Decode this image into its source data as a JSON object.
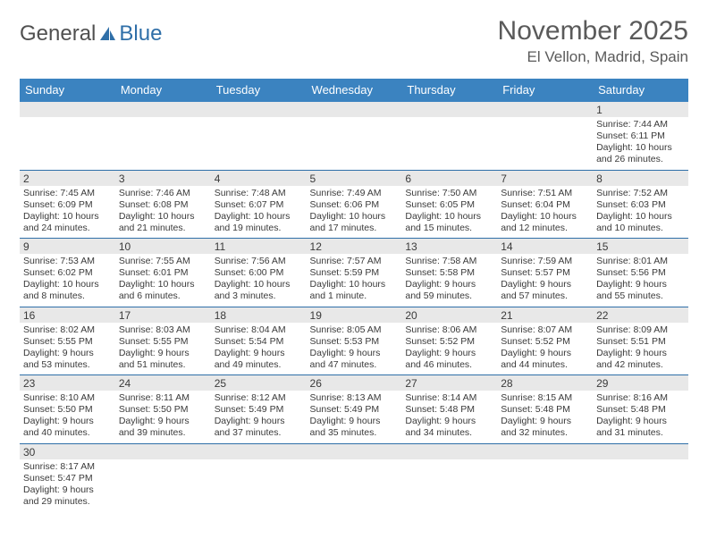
{
  "logo": {
    "text1": "General",
    "text2": "Blue"
  },
  "title": "November 2025",
  "location": "El Vellon, Madrid, Spain",
  "colors": {
    "header_bg": "#3b83c0",
    "header_text": "#ffffff",
    "daynum_bg": "#e8e8e8",
    "row_border": "#2f6fa8",
    "body_text": "#3a3a3a",
    "title_text": "#5a5a5a",
    "logo_blue": "#2f6fa8"
  },
  "weekdays": [
    "Sunday",
    "Monday",
    "Tuesday",
    "Wednesday",
    "Thursday",
    "Friday",
    "Saturday"
  ],
  "grid": [
    [
      {
        "n": "",
        "sr": "",
        "ss": "",
        "dl": ""
      },
      {
        "n": "",
        "sr": "",
        "ss": "",
        "dl": ""
      },
      {
        "n": "",
        "sr": "",
        "ss": "",
        "dl": ""
      },
      {
        "n": "",
        "sr": "",
        "ss": "",
        "dl": ""
      },
      {
        "n": "",
        "sr": "",
        "ss": "",
        "dl": ""
      },
      {
        "n": "",
        "sr": "",
        "ss": "",
        "dl": ""
      },
      {
        "n": "1",
        "sr": "Sunrise: 7:44 AM",
        "ss": "Sunset: 6:11 PM",
        "dl": "Daylight: 10 hours and 26 minutes."
      }
    ],
    [
      {
        "n": "2",
        "sr": "Sunrise: 7:45 AM",
        "ss": "Sunset: 6:09 PM",
        "dl": "Daylight: 10 hours and 24 minutes."
      },
      {
        "n": "3",
        "sr": "Sunrise: 7:46 AM",
        "ss": "Sunset: 6:08 PM",
        "dl": "Daylight: 10 hours and 21 minutes."
      },
      {
        "n": "4",
        "sr": "Sunrise: 7:48 AM",
        "ss": "Sunset: 6:07 PM",
        "dl": "Daylight: 10 hours and 19 minutes."
      },
      {
        "n": "5",
        "sr": "Sunrise: 7:49 AM",
        "ss": "Sunset: 6:06 PM",
        "dl": "Daylight: 10 hours and 17 minutes."
      },
      {
        "n": "6",
        "sr": "Sunrise: 7:50 AM",
        "ss": "Sunset: 6:05 PM",
        "dl": "Daylight: 10 hours and 15 minutes."
      },
      {
        "n": "7",
        "sr": "Sunrise: 7:51 AM",
        "ss": "Sunset: 6:04 PM",
        "dl": "Daylight: 10 hours and 12 minutes."
      },
      {
        "n": "8",
        "sr": "Sunrise: 7:52 AM",
        "ss": "Sunset: 6:03 PM",
        "dl": "Daylight: 10 hours and 10 minutes."
      }
    ],
    [
      {
        "n": "9",
        "sr": "Sunrise: 7:53 AM",
        "ss": "Sunset: 6:02 PM",
        "dl": "Daylight: 10 hours and 8 minutes."
      },
      {
        "n": "10",
        "sr": "Sunrise: 7:55 AM",
        "ss": "Sunset: 6:01 PM",
        "dl": "Daylight: 10 hours and 6 minutes."
      },
      {
        "n": "11",
        "sr": "Sunrise: 7:56 AM",
        "ss": "Sunset: 6:00 PM",
        "dl": "Daylight: 10 hours and 3 minutes."
      },
      {
        "n": "12",
        "sr": "Sunrise: 7:57 AM",
        "ss": "Sunset: 5:59 PM",
        "dl": "Daylight: 10 hours and 1 minute."
      },
      {
        "n": "13",
        "sr": "Sunrise: 7:58 AM",
        "ss": "Sunset: 5:58 PM",
        "dl": "Daylight: 9 hours and 59 minutes."
      },
      {
        "n": "14",
        "sr": "Sunrise: 7:59 AM",
        "ss": "Sunset: 5:57 PM",
        "dl": "Daylight: 9 hours and 57 minutes."
      },
      {
        "n": "15",
        "sr": "Sunrise: 8:01 AM",
        "ss": "Sunset: 5:56 PM",
        "dl": "Daylight: 9 hours and 55 minutes."
      }
    ],
    [
      {
        "n": "16",
        "sr": "Sunrise: 8:02 AM",
        "ss": "Sunset: 5:55 PM",
        "dl": "Daylight: 9 hours and 53 minutes."
      },
      {
        "n": "17",
        "sr": "Sunrise: 8:03 AM",
        "ss": "Sunset: 5:55 PM",
        "dl": "Daylight: 9 hours and 51 minutes."
      },
      {
        "n": "18",
        "sr": "Sunrise: 8:04 AM",
        "ss": "Sunset: 5:54 PM",
        "dl": "Daylight: 9 hours and 49 minutes."
      },
      {
        "n": "19",
        "sr": "Sunrise: 8:05 AM",
        "ss": "Sunset: 5:53 PM",
        "dl": "Daylight: 9 hours and 47 minutes."
      },
      {
        "n": "20",
        "sr": "Sunrise: 8:06 AM",
        "ss": "Sunset: 5:52 PM",
        "dl": "Daylight: 9 hours and 46 minutes."
      },
      {
        "n": "21",
        "sr": "Sunrise: 8:07 AM",
        "ss": "Sunset: 5:52 PM",
        "dl": "Daylight: 9 hours and 44 minutes."
      },
      {
        "n": "22",
        "sr": "Sunrise: 8:09 AM",
        "ss": "Sunset: 5:51 PM",
        "dl": "Daylight: 9 hours and 42 minutes."
      }
    ],
    [
      {
        "n": "23",
        "sr": "Sunrise: 8:10 AM",
        "ss": "Sunset: 5:50 PM",
        "dl": "Daylight: 9 hours and 40 minutes."
      },
      {
        "n": "24",
        "sr": "Sunrise: 8:11 AM",
        "ss": "Sunset: 5:50 PM",
        "dl": "Daylight: 9 hours and 39 minutes."
      },
      {
        "n": "25",
        "sr": "Sunrise: 8:12 AM",
        "ss": "Sunset: 5:49 PM",
        "dl": "Daylight: 9 hours and 37 minutes."
      },
      {
        "n": "26",
        "sr": "Sunrise: 8:13 AM",
        "ss": "Sunset: 5:49 PM",
        "dl": "Daylight: 9 hours and 35 minutes."
      },
      {
        "n": "27",
        "sr": "Sunrise: 8:14 AM",
        "ss": "Sunset: 5:48 PM",
        "dl": "Daylight: 9 hours and 34 minutes."
      },
      {
        "n": "28",
        "sr": "Sunrise: 8:15 AM",
        "ss": "Sunset: 5:48 PM",
        "dl": "Daylight: 9 hours and 32 minutes."
      },
      {
        "n": "29",
        "sr": "Sunrise: 8:16 AM",
        "ss": "Sunset: 5:48 PM",
        "dl": "Daylight: 9 hours and 31 minutes."
      }
    ],
    [
      {
        "n": "30",
        "sr": "Sunrise: 8:17 AM",
        "ss": "Sunset: 5:47 PM",
        "dl": "Daylight: 9 hours and 29 minutes."
      },
      {
        "n": "",
        "sr": "",
        "ss": "",
        "dl": ""
      },
      {
        "n": "",
        "sr": "",
        "ss": "",
        "dl": ""
      },
      {
        "n": "",
        "sr": "",
        "ss": "",
        "dl": ""
      },
      {
        "n": "",
        "sr": "",
        "ss": "",
        "dl": ""
      },
      {
        "n": "",
        "sr": "",
        "ss": "",
        "dl": ""
      },
      {
        "n": "",
        "sr": "",
        "ss": "",
        "dl": ""
      }
    ]
  ]
}
